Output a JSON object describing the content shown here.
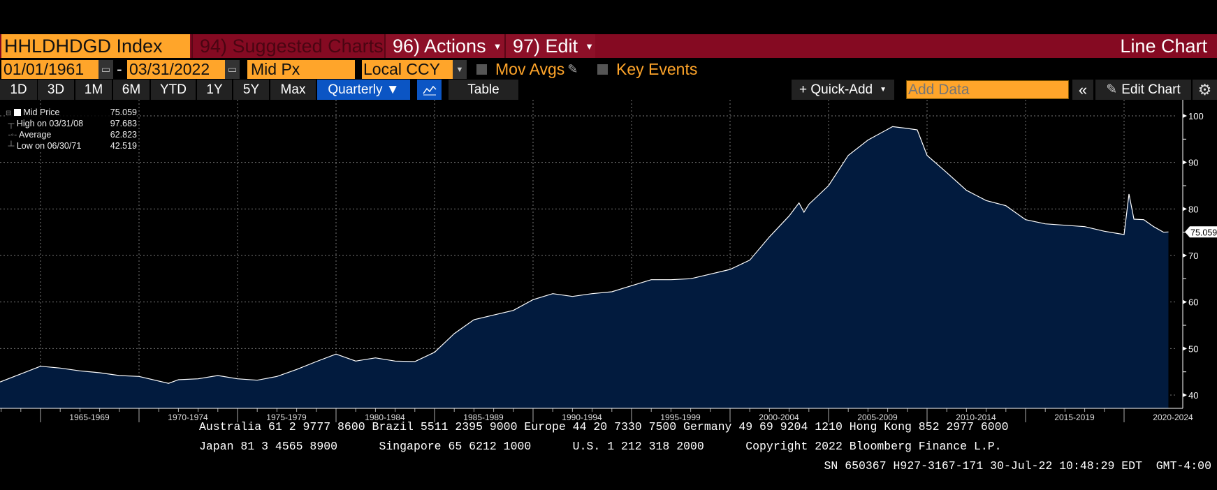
{
  "toolbar": {
    "ticker": "HHLDHDGD Index",
    "suggested": "94) Suggested Charts",
    "actions": "96) Actions",
    "edit": "97) Edit",
    "view_title": "Line Chart",
    "start_date": "01/01/1961",
    "date_sep": "-",
    "end_date": "03/31/2022",
    "field": "Mid Px",
    "currency": "Local CCY",
    "mov_avgs": "Mov Avgs",
    "key_events": "Key Events",
    "ranges": [
      "1D",
      "3D",
      "1M",
      "6M",
      "YTD",
      "1Y",
      "5Y",
      "Max"
    ],
    "frequency": "Quarterly ▼",
    "table": "Table",
    "quick_add": "+ Quick-Add",
    "add_data_placeholder": "Add Data",
    "collapse": "«",
    "edit_chart": "Edit Chart"
  },
  "legend": [
    {
      "label": "Mid Price",
      "value": "75.059"
    },
    {
      "label": "High on 03/31/08",
      "value": "97.683"
    },
    {
      "label": "Average",
      "value": "62.823"
    },
    {
      "label": "Low on 06/30/71",
      "value": "42.519"
    }
  ],
  "chart_data": {
    "type": "area",
    "title": "HHLDHDGD Index",
    "series": [
      {
        "name": "Mid Price",
        "color": "#ffffff",
        "fill": "#021b3e"
      }
    ],
    "x": [
      1963,
      1965,
      1966,
      1967,
      1968,
      1969,
      1970,
      1971.5,
      1972,
      1973,
      1974,
      1975,
      1976,
      1977,
      1978,
      1979,
      1980,
      1981,
      1982,
      1983,
      1984,
      1985,
      1986,
      1987,
      1988,
      1989,
      1990,
      1991,
      1992,
      1993,
      1994,
      1995,
      1996,
      1997,
      1998,
      1999,
      2000,
      2001,
      2002,
      2003,
      2003.5,
      2003.75,
      2004,
      2005,
      2006,
      2007,
      2008.25,
      2009,
      2009.5,
      2010,
      2011,
      2012,
      2013,
      2014,
      2015,
      2016,
      2017,
      2018,
      2019,
      2020,
      2020.25,
      2020.5,
      2021,
      2021.5,
      2022,
      2022.25
    ],
    "y": [
      42.8,
      46.2,
      45.8,
      45.2,
      44.8,
      44.2,
      44.0,
      42.519,
      43.3,
      43.5,
      44.2,
      43.5,
      43.2,
      44.0,
      45.5,
      47.2,
      48.8,
      47.3,
      48.0,
      47.3,
      47.2,
      49.2,
      53.2,
      56.2,
      57.2,
      58.2,
      60.5,
      61.8,
      61.2,
      61.8,
      62.2,
      63.5,
      64.8,
      64.8,
      65.0,
      66.0,
      67.0,
      69.0,
      74.0,
      78.5,
      81.3,
      79.3,
      81.0,
      85.0,
      91.5,
      94.8,
      97.683,
      97.3,
      97.0,
      91.5,
      87.8,
      84.0,
      81.8,
      80.7,
      77.7,
      76.8,
      76.5,
      76.2,
      75.2,
      74.5,
      83.2,
      77.8,
      77.7,
      76.2,
      75.0,
      75.059
    ],
    "x_tick_labels": [
      "1965-1969",
      "1970-1974",
      "1975-1979",
      "1980-1984",
      "1985-1989",
      "1990-1994",
      "1995-1999",
      "2000-2004",
      "2005-2009",
      "2010-2014",
      "2015-2019",
      "2020-2024"
    ],
    "x_tick_starts": [
      1965,
      1970,
      1975,
      1980,
      1985,
      1990,
      1995,
      2000,
      2005,
      2010,
      2015,
      2020
    ],
    "y_ticks": [
      40,
      50,
      60,
      70,
      80,
      90,
      100
    ],
    "ylim": [
      38,
      103
    ],
    "last_value_label": "75.059",
    "grid": true
  },
  "footer": {
    "line1": "Australia 61 2 9777 8600 Brazil 5511 2395 9000 Europe 44 20 7330 7500 Germany 49 69 9204 1210 Hong Kong 852 2977 6000",
    "line2": "Japan 81 3 4565 8900      Singapore 65 6212 1000      U.S. 1 212 318 2000      Copyright 2022 Bloomberg Finance L.P.",
    "line3": "SN 650367 H927-3167-171 30-Jul-22 10:48:29 EDT  GMT-4:00"
  }
}
